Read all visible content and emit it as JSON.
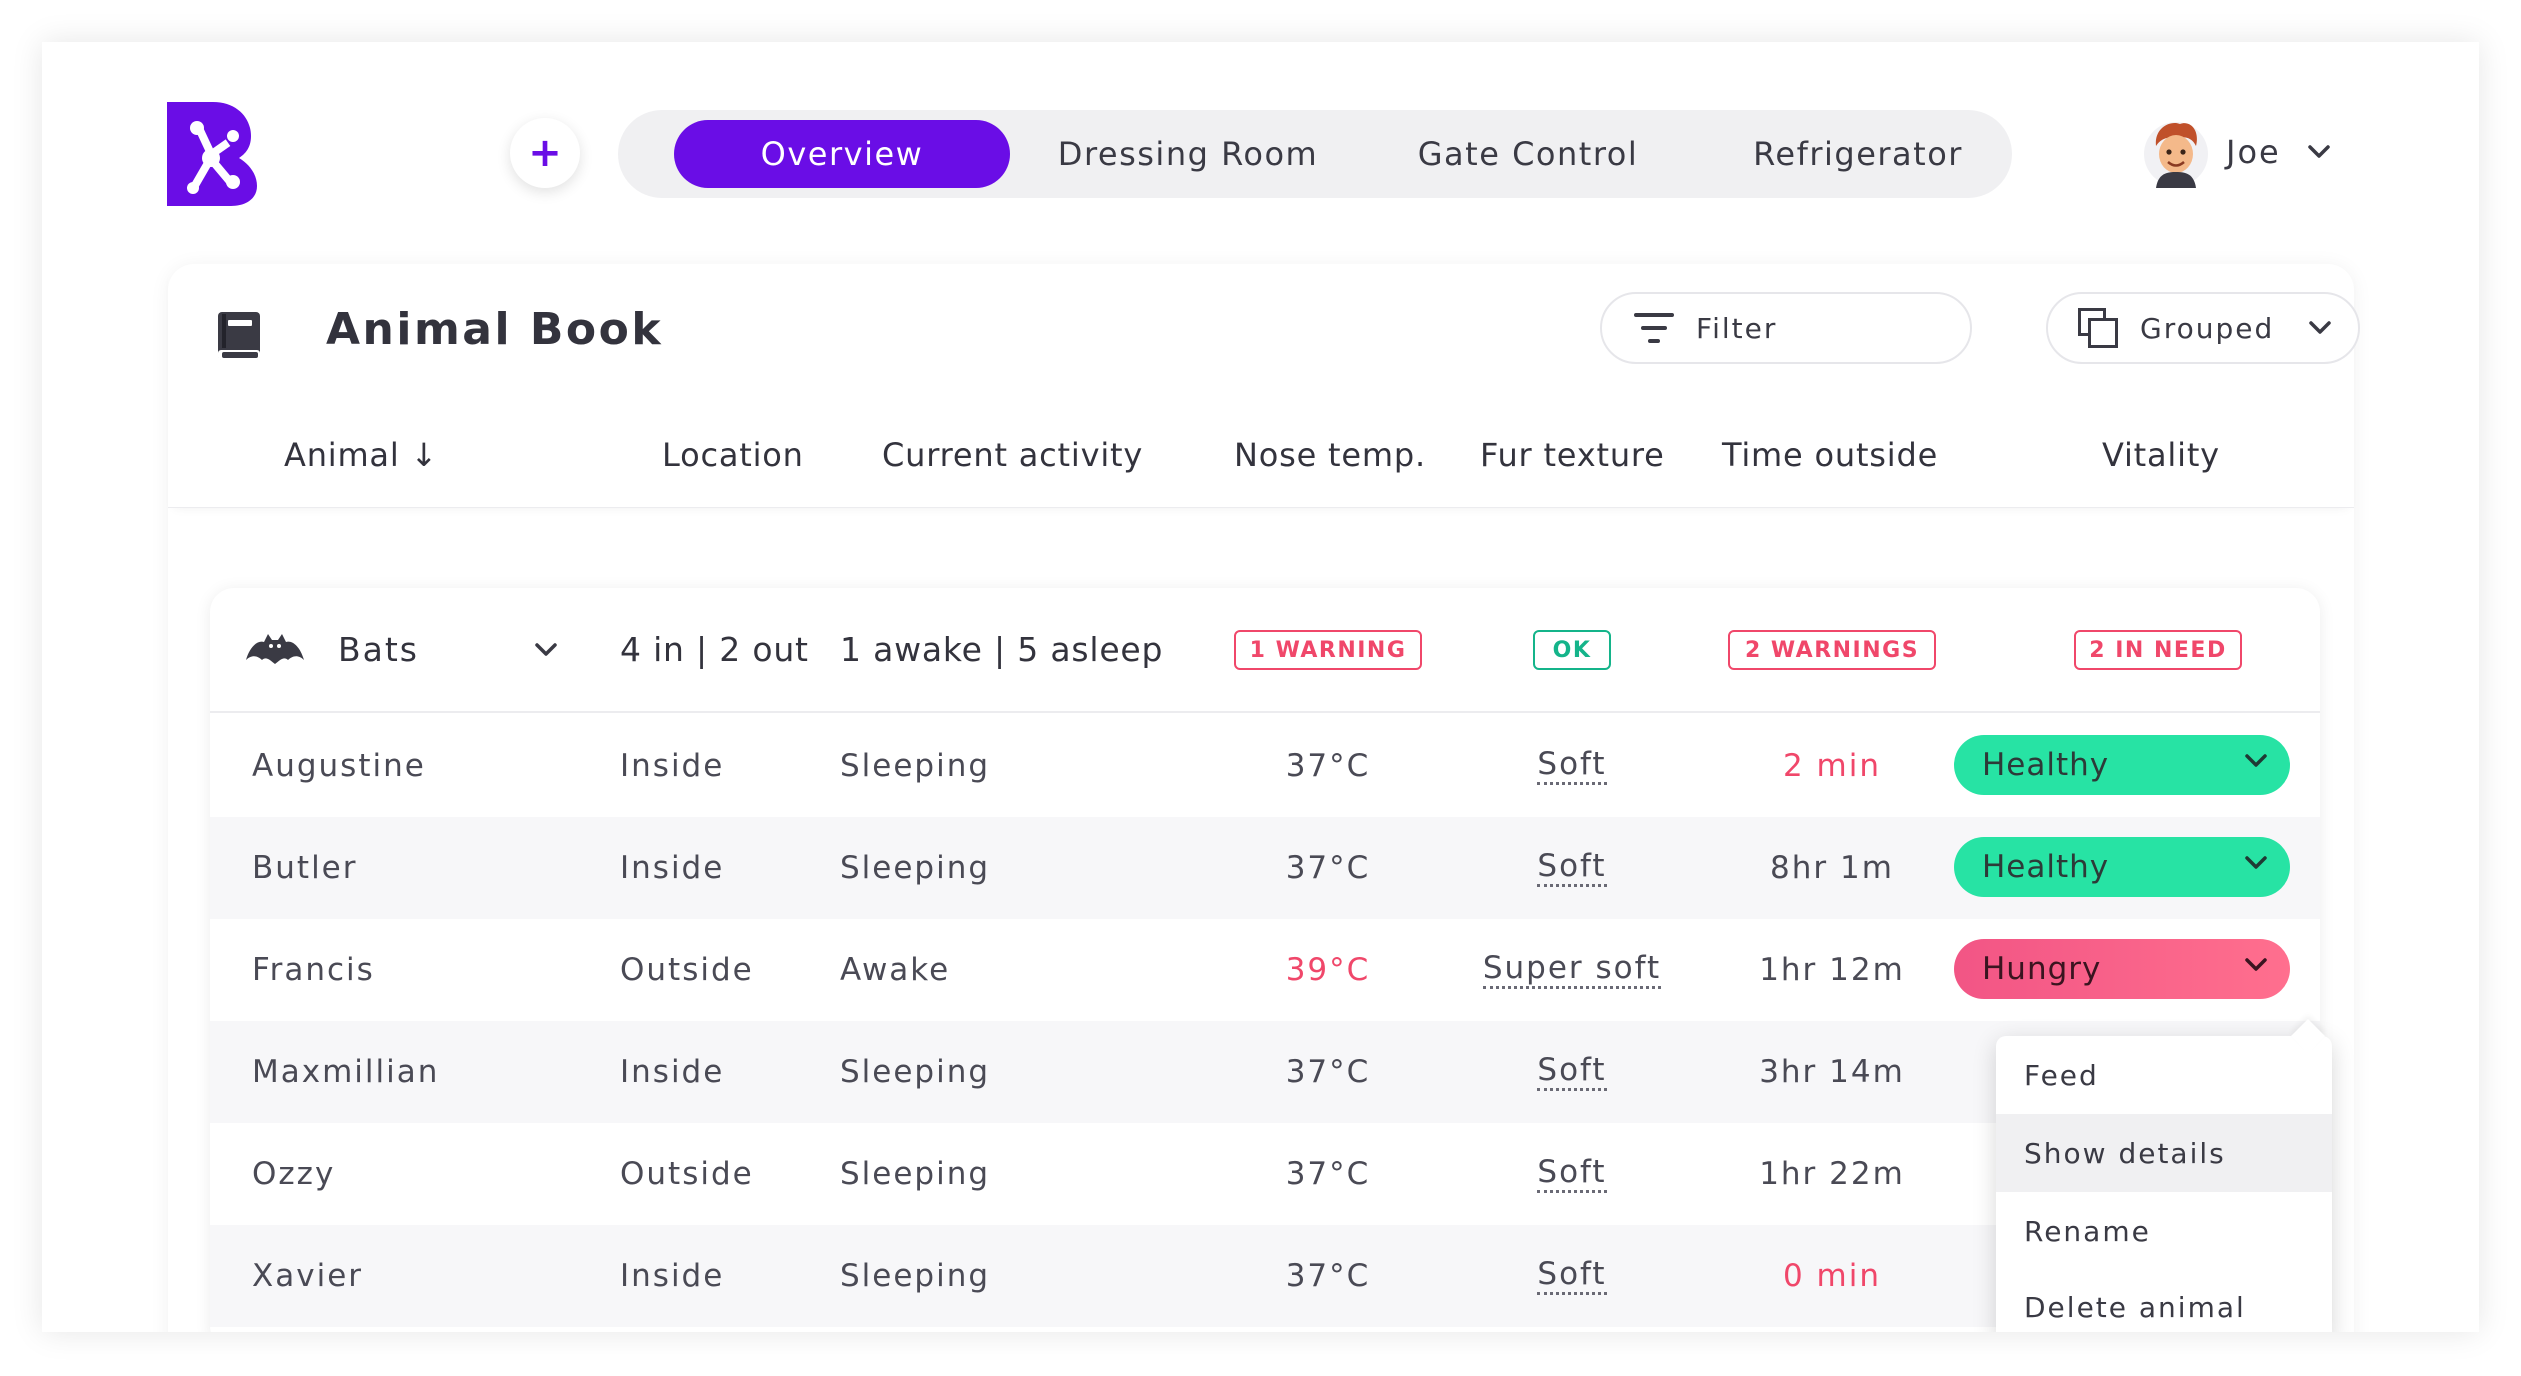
{
  "app": {
    "tabs": [
      {
        "label": "Overview",
        "active": true
      },
      {
        "label": "Dressing Room",
        "active": false
      },
      {
        "label": "Gate Control",
        "active": false
      },
      {
        "label": "Refrigerator",
        "active": false
      }
    ],
    "add_button": "+",
    "user": {
      "name": "Joe"
    }
  },
  "card": {
    "title": "Animal Book",
    "filter_label": "Filter",
    "grouped_label": "Grouped",
    "columns": [
      "Animal ↓",
      "Location",
      "Current activity",
      "Nose temp.",
      "Fur texture",
      "Time outside",
      "Vitality"
    ]
  },
  "group": {
    "name": "Bats",
    "location": "4 in | 2 out",
    "activity": "1 awake | 5 asleep",
    "nose_badge": "1 WARNING",
    "fur_badge": "OK",
    "time_badge": "2 WARNINGS",
    "vitality_badge": "2 IN NEED"
  },
  "rows": [
    {
      "name": "Augustine",
      "location": "Inside",
      "activity": "Sleeping",
      "temp": "37°C",
      "fur": "Soft",
      "time": "2 min",
      "vitality": "Healthy"
    },
    {
      "name": "Butler",
      "location": "Inside",
      "activity": "Sleeping",
      "temp": "37°C",
      "fur": "Soft",
      "time": "8hr 1m",
      "vitality": "Healthy"
    },
    {
      "name": "Francis",
      "location": "Outside",
      "activity": "Awake",
      "temp": "39°C",
      "fur": "Super soft",
      "time": "1hr 12m",
      "vitality": "Hungry"
    },
    {
      "name": "Maxmillian",
      "location": "Inside",
      "activity": "Sleeping",
      "temp": "37°C",
      "fur": "Soft",
      "time": "3hr 14m"
    },
    {
      "name": "Ozzy",
      "location": "Outside",
      "activity": "Sleeping",
      "temp": "37°C",
      "fur": "Soft",
      "time": "1hr 22m"
    },
    {
      "name": "Xavier",
      "location": "Inside",
      "activity": "Sleeping",
      "temp": "37°C",
      "fur": "Soft",
      "time": "0 min"
    }
  ],
  "menu": {
    "items": [
      "Feed",
      "Show details",
      "Rename",
      "Delete animal"
    ]
  },
  "colors": {
    "brand": "#6a0de6",
    "warning": "#f0476a",
    "ok": "#14b48a",
    "healthy": "#27e3a4",
    "hungry": "#f25585"
  },
  "icons": {
    "logo": "brand-logo-icon",
    "filter": "filter-icon",
    "grouped": "grouped-icon",
    "book": "book-icon",
    "bat": "bat-icon",
    "chevron": "chevron-down-icon"
  }
}
